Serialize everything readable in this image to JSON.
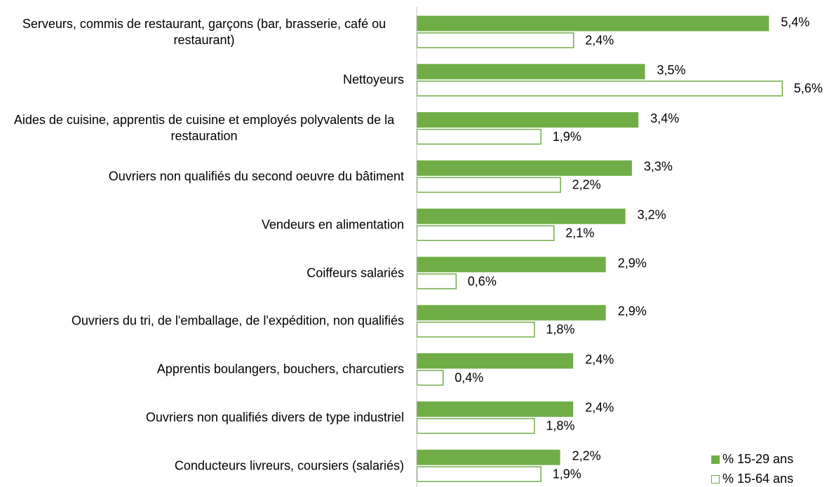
{
  "chart_data": {
    "type": "bar",
    "orientation": "horizontal",
    "categories": [
      "Serveurs, commis de restaurant, garçons (bar, brasserie, café ou restaurant)",
      "Nettoyeurs",
      "Aides de cuisine, apprentis de cuisine et employés polyvalents de la restauration",
      "Ouvriers non qualifiés du second oeuvre du bâtiment",
      "Vendeurs en alimentation",
      "Coiffeurs salariés",
      "Ouvriers du tri, de l'emballage, de l'expédition, non qualifiés",
      "Apprentis boulangers, bouchers, charcutiers",
      "Ouvriers non qualifiés divers de type industriel",
      "Conducteurs livreurs, coursiers (salariés)"
    ],
    "series": [
      {
        "name": "% 15-29 ans",
        "color": "#70ad47",
        "fill": "solid",
        "values": [
          5.4,
          3.5,
          3.4,
          3.3,
          3.2,
          2.9,
          2.9,
          2.4,
          2.4,
          2.2
        ],
        "value_labels": [
          "5,4%",
          "3,5%",
          "3,4%",
          "3,3%",
          "3,2%",
          "2,9%",
          "2,9%",
          "2,4%",
          "2,4%",
          "2,2%"
        ]
      },
      {
        "name": "% 15-64 ans",
        "color": "#70ad47",
        "fill": "none",
        "values": [
          2.4,
          5.6,
          1.9,
          2.2,
          2.1,
          0.6,
          1.8,
          0.4,
          1.8,
          1.9
        ],
        "value_labels": [
          "2,4%",
          "5,6%",
          "1,9%",
          "2,2%",
          "2,1%",
          "0,6%",
          "1,8%",
          "0,4%",
          "1,8%",
          "1,9%"
        ]
      }
    ],
    "xlim": [
      0,
      6
    ],
    "legend": "lower right"
  }
}
